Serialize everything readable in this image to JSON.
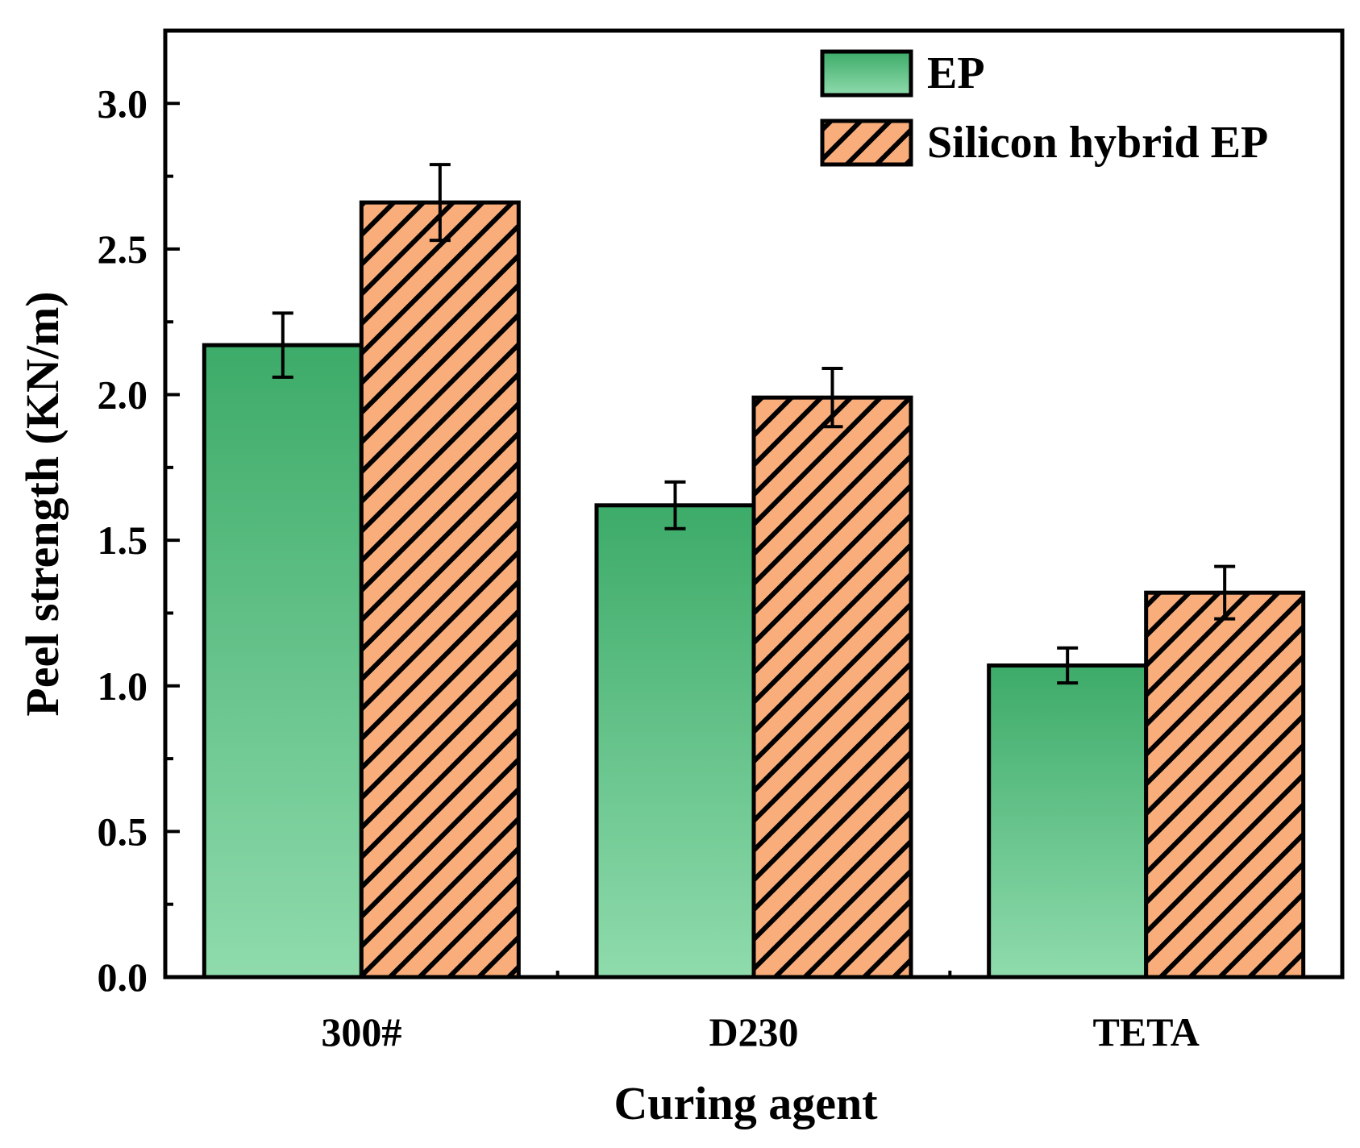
{
  "chart_data": {
    "type": "bar",
    "title": "",
    "xlabel": "Curing agent",
    "ylabel": "Peel strength (KN/m)",
    "categories": [
      "300#",
      "D230",
      "TETA"
    ],
    "ylim": [
      0,
      3.25
    ],
    "yticks": [
      "0.0",
      "0.5",
      "1.0",
      "1.5",
      "2.0",
      "2.5",
      "3.0"
    ],
    "legend_position": "top-right",
    "series": [
      {
        "name": "EP",
        "values": [
          2.17,
          1.62,
          1.07
        ],
        "errors": [
          0.11,
          0.08,
          0.06
        ],
        "style": "gradient",
        "colors": {
          "top": "#3dab69",
          "bottom": "#8fdbac"
        }
      },
      {
        "name": "Silicon hybrid EP",
        "values": [
          2.66,
          1.99,
          1.32
        ],
        "errors": [
          0.13,
          0.1,
          0.09
        ],
        "style": "hatch",
        "colors": {
          "fill": "#f9ad7a",
          "hatch": "#000000"
        }
      }
    ]
  }
}
